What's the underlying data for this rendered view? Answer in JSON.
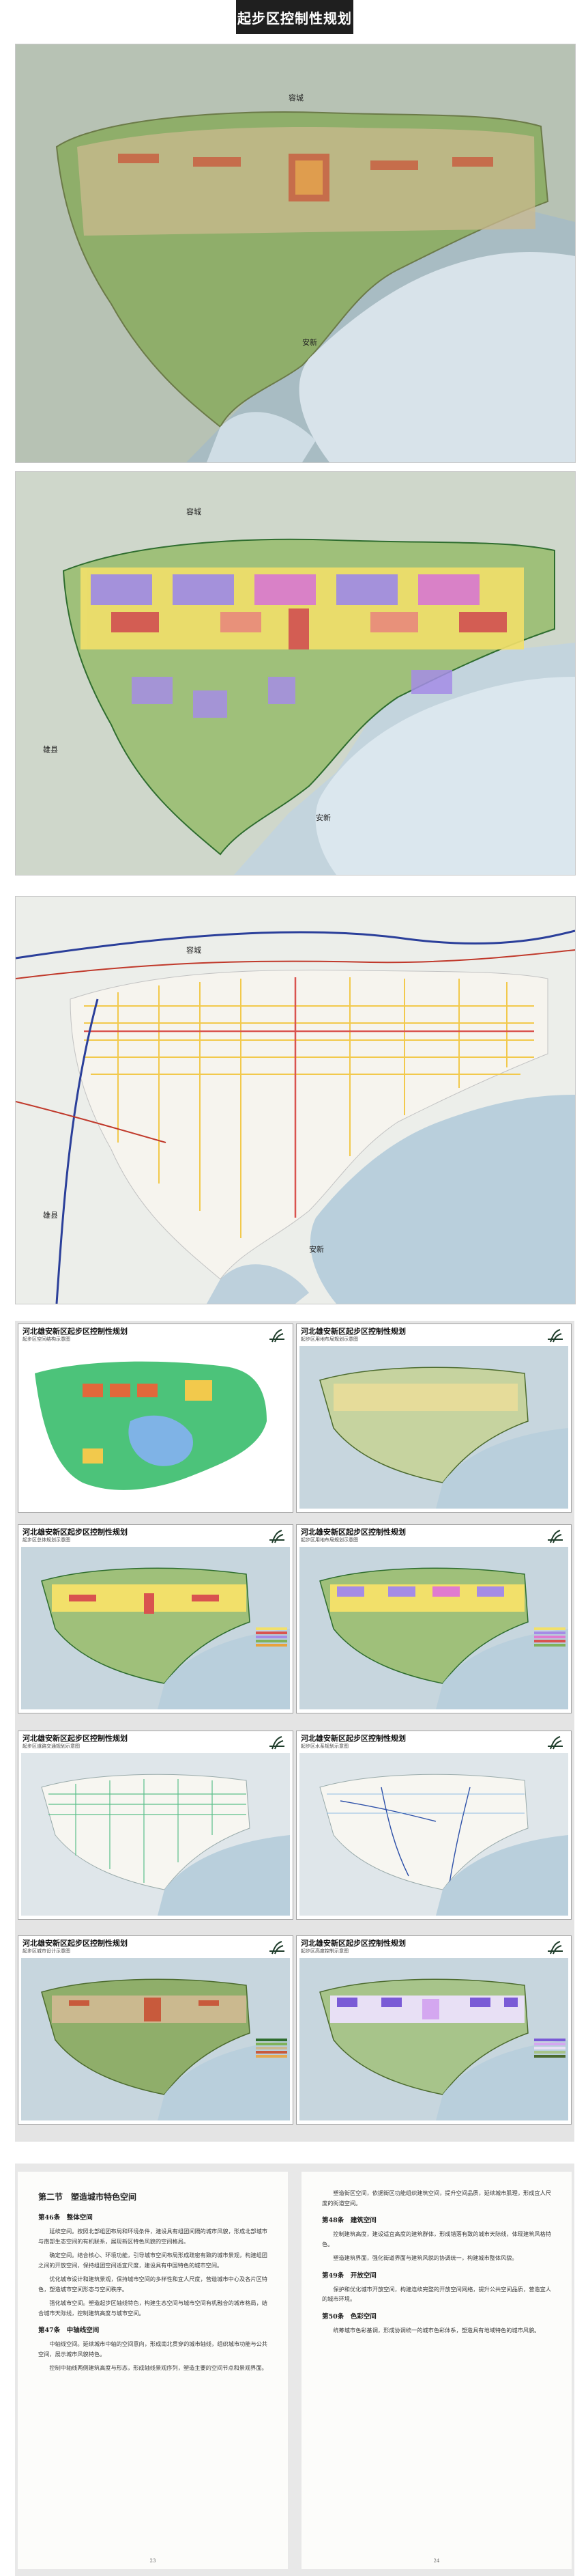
{
  "page": {
    "title": "起步区控制性规划"
  },
  "maps": {
    "map1": {
      "label_north": "容城",
      "label_south": "安新"
    },
    "map2": {
      "label_north": "容城",
      "label_west": "雄县",
      "label_south": "安新"
    },
    "map3": {
      "label_north": "容城",
      "label_west": "雄县",
      "label_south": "安新"
    }
  },
  "sheets": [
    {
      "title": "河北雄安新区起步区控制性规划",
      "subtitle": "起步区空间结构示意图"
    },
    {
      "title": "河北雄安新区起步区控制性规划",
      "subtitle": "起步区用地布局规划示意图"
    },
    {
      "title": "河北雄安新区起步区控制性规划",
      "subtitle": "起步区总体规划示意图"
    },
    {
      "title": "河北雄安新区起步区控制性规划",
      "subtitle": "起步区用地布局规划示意图"
    },
    {
      "title": "河北雄安新区起步区控制性规划",
      "subtitle": "起步区道路交通规划示意图"
    },
    {
      "title": "河北雄安新区起步区控制性规划",
      "subtitle": "起步区水系规划示意图"
    },
    {
      "title": "河北雄安新区起步区控制性规划",
      "subtitle": "起步区城市设计示意图"
    },
    {
      "title": "河北雄安新区起步区控制性规划",
      "subtitle": "起步区高度控制示意图"
    }
  ],
  "document": {
    "left": {
      "section_title": "第二节　塑造城市特色空间",
      "h1": "第46条　整体空间",
      "p1": "延续空间。按照北部组团布局和环境条件，建设具有组团间隔的城市风貌，形成北部城市与南部生态空间的有机联系，展现新区特色风貌的空间格局。",
      "p2": "确定空间。结合核心、环境功能，引导城市空间布局形成疏密有致的城市景观，构建组团之间的开放空间，保持组团空间适宜尺度，建设具有中国特色的城市空间。",
      "p3": "优化城市设计和建筑景观，保持城市空间的多样性和宜人尺度，营造城市中心及各片区特色，塑造城市空间形态与空间秩序。",
      "p4": "强化城市空间。塑造起步区轴线特色，构建生态空间与城市空间有机融合的城市格局，结合城市天际线，控制建筑高度与城市空间。",
      "h2": "第47条　中轴线空间",
      "p5": "中轴线空间。延续城市中轴的空间意向，形成南北贯穿的城市轴线，组织城市功能与公共空间，展示城市风貌特色。",
      "p6": "控制中轴线两侧建筑高度与形态，形成轴线景观序列，塑造主要的空间节点和景观界面。",
      "page_number": "23"
    },
    "right": {
      "p1": "塑造街区空间，依据街区功能组织建筑空间，提升空间品质，延续城市肌理，形成宜人尺度的街道空间。",
      "h1": "第48条　建筑空间",
      "p2": "控制建筑高度，建设适宜高度的建筑群体，形成错落有致的城市天际线，体现建筑风格特色。",
      "p3": "塑造建筑界面，强化街道界面与建筑风貌的协调统一，构建城市整体风貌。",
      "h2": "第49条　开放空间",
      "p4": "保护和优化城市开放空间，构建连续完整的开放空间网络，提升公共空间品质，营造宜人的城市环境。",
      "h3": "第50条　色彩空间",
      "p5": "统筹城市色彩基调，形成协调统一的城市色彩体系，塑造具有地域特色的城市风貌。",
      "page_number": "24"
    }
  },
  "colors": {
    "water": "#b9cfdc",
    "green": "#7fb25a",
    "residential": "#f2e06a",
    "commercial": "#d9534f",
    "public": "#9b7be0",
    "road": "#e8a23c"
  }
}
